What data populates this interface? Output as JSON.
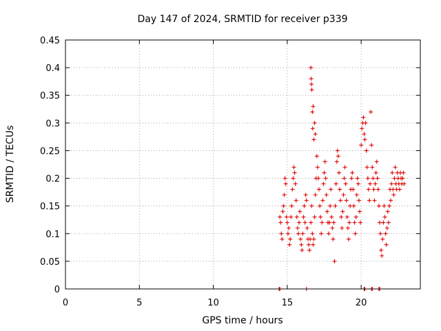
{
  "chart_data": {
    "type": "scatter",
    "title": "Day 147 of 2024, SRMTID for receiver p339",
    "xlabel": "GPS time / hours",
    "ylabel": "SRMTID / TECUs",
    "xlim": [
      0,
      24
    ],
    "ylim": [
      0,
      0.45
    ],
    "x_ticks": [
      0,
      5,
      10,
      15,
      20
    ],
    "y_ticks": [
      0,
      0.05,
      0.1,
      0.15,
      0.2,
      0.25,
      0.3,
      0.35,
      0.4,
      0.45
    ],
    "x_tick_labels": [
      "0",
      "5",
      "10",
      "15",
      "20"
    ],
    "y_tick_labels": [
      "0",
      "0.05",
      "0.1",
      "0.15",
      "0.2",
      "0.25",
      "0.3",
      "0.35",
      "0.4",
      "0.45"
    ],
    "grid": true,
    "marker": "plus",
    "series": [
      {
        "name": "SRMTID",
        "color": "#e00000",
        "points": [
          [
            14.45,
            0.0
          ],
          [
            14.5,
            0.0
          ],
          [
            16.3,
            0.0
          ],
          [
            20.2,
            0.0
          ],
          [
            20.25,
            0.0
          ],
          [
            20.7,
            0.0
          ],
          [
            20.75,
            0.0
          ],
          [
            21.2,
            0.0
          ],
          [
            21.25,
            0.0
          ],
          [
            14.5,
            0.13
          ],
          [
            14.55,
            0.12
          ],
          [
            14.6,
            0.1
          ],
          [
            14.65,
            0.09
          ],
          [
            14.7,
            0.14
          ],
          [
            14.75,
            0.15
          ],
          [
            14.8,
            0.17
          ],
          [
            14.85,
            0.2
          ],
          [
            14.9,
            0.19
          ],
          [
            14.95,
            0.13
          ],
          [
            15.0,
            0.12
          ],
          [
            15.05,
            0.1
          ],
          [
            15.1,
            0.11
          ],
          [
            15.15,
            0.08
          ],
          [
            15.2,
            0.09
          ],
          [
            15.25,
            0.13
          ],
          [
            15.3,
            0.15
          ],
          [
            15.35,
            0.18
          ],
          [
            15.4,
            0.2
          ],
          [
            15.45,
            0.22
          ],
          [
            15.5,
            0.21
          ],
          [
            15.55,
            0.19
          ],
          [
            15.6,
            0.16
          ],
          [
            15.65,
            0.13
          ],
          [
            15.7,
            0.11
          ],
          [
            15.75,
            0.1
          ],
          [
            15.8,
            0.12
          ],
          [
            15.85,
            0.14
          ],
          [
            15.9,
            0.09
          ],
          [
            15.95,
            0.08
          ],
          [
            16.0,
            0.07
          ],
          [
            16.05,
            0.1
          ],
          [
            16.1,
            0.13
          ],
          [
            16.15,
            0.15
          ],
          [
            16.2,
            0.12
          ],
          [
            16.25,
            0.17
          ],
          [
            16.3,
            0.16
          ],
          [
            16.35,
            0.11
          ],
          [
            16.4,
            0.09
          ],
          [
            16.45,
            0.08
          ],
          [
            16.5,
            0.07
          ],
          [
            16.55,
            0.09
          ],
          [
            16.6,
            0.12
          ],
          [
            16.65,
            0.15
          ],
          [
            16.7,
            0.1
          ],
          [
            16.75,
            0.08
          ],
          [
            16.8,
            0.09
          ],
          [
            16.85,
            0.13
          ],
          [
            16.9,
            0.17
          ],
          [
            16.95,
            0.2
          ],
          [
            16.6,
            0.4
          ],
          [
            16.62,
            0.38
          ],
          [
            16.64,
            0.37
          ],
          [
            16.66,
            0.36
          ],
          [
            16.7,
            0.32
          ],
          [
            16.72,
            0.29
          ],
          [
            16.75,
            0.33
          ],
          [
            16.8,
            0.27
          ],
          [
            16.85,
            0.3
          ],
          [
            16.9,
            0.28
          ],
          [
            17.0,
            0.24
          ],
          [
            17.05,
            0.22
          ],
          [
            17.1,
            0.2
          ],
          [
            17.15,
            0.18
          ],
          [
            17.2,
            0.15
          ],
          [
            17.25,
            0.13
          ],
          [
            17.3,
            0.1
          ],
          [
            17.35,
            0.12
          ],
          [
            17.4,
            0.16
          ],
          [
            17.45,
            0.19
          ],
          [
            17.5,
            0.21
          ],
          [
            17.55,
            0.23
          ],
          [
            17.6,
            0.2
          ],
          [
            17.65,
            0.17
          ],
          [
            17.7,
            0.14
          ],
          [
            17.75,
            0.12
          ],
          [
            17.8,
            0.1
          ],
          [
            17.85,
            0.12
          ],
          [
            17.9,
            0.15
          ],
          [
            17.95,
            0.18
          ],
          [
            18.0,
            0.13
          ],
          [
            18.05,
            0.11
          ],
          [
            18.1,
            0.09
          ],
          [
            18.15,
            0.12
          ],
          [
            18.2,
            0.05
          ],
          [
            18.25,
            0.15
          ],
          [
            18.3,
            0.19
          ],
          [
            18.35,
            0.23
          ],
          [
            18.4,
            0.25
          ],
          [
            18.45,
            0.24
          ],
          [
            18.5,
            0.21
          ],
          [
            18.55,
            0.18
          ],
          [
            18.6,
            0.16
          ],
          [
            18.65,
            0.13
          ],
          [
            18.7,
            0.11
          ],
          [
            18.75,
            0.14
          ],
          [
            18.8,
            0.17
          ],
          [
            18.85,
            0.2
          ],
          [
            18.9,
            0.22
          ],
          [
            18.95,
            0.19
          ],
          [
            19.0,
            0.16
          ],
          [
            19.05,
            0.13
          ],
          [
            19.1,
            0.11
          ],
          [
            19.15,
            0.09
          ],
          [
            19.2,
            0.12
          ],
          [
            19.25,
            0.15
          ],
          [
            19.3,
            0.18
          ],
          [
            19.35,
            0.2
          ],
          [
            19.4,
            0.21
          ],
          [
            19.45,
            0.18
          ],
          [
            19.5,
            0.15
          ],
          [
            19.55,
            0.12
          ],
          [
            19.6,
            0.1
          ],
          [
            19.65,
            0.13
          ],
          [
            19.7,
            0.17
          ],
          [
            19.75,
            0.2
          ],
          [
            19.8,
            0.19
          ],
          [
            19.85,
            0.16
          ],
          [
            19.9,
            0.14
          ],
          [
            19.95,
            0.12
          ],
          [
            20.0,
            0.26
          ],
          [
            20.05,
            0.29
          ],
          [
            20.1,
            0.3
          ],
          [
            20.15,
            0.31
          ],
          [
            20.2,
            0.28
          ],
          [
            20.25,
            0.27
          ],
          [
            20.3,
            0.3
          ],
          [
            20.35,
            0.25
          ],
          [
            20.4,
            0.22
          ],
          [
            20.45,
            0.2
          ],
          [
            20.5,
            0.18
          ],
          [
            20.55,
            0.16
          ],
          [
            20.6,
            0.19
          ],
          [
            20.65,
            0.32
          ],
          [
            20.7,
            0.26
          ],
          [
            20.75,
            0.22
          ],
          [
            20.8,
            0.2
          ],
          [
            20.85,
            0.18
          ],
          [
            20.9,
            0.16
          ],
          [
            20.95,
            0.19
          ],
          [
            21.0,
            0.21
          ],
          [
            21.05,
            0.23
          ],
          [
            21.1,
            0.2
          ],
          [
            21.15,
            0.18
          ],
          [
            21.2,
            0.15
          ],
          [
            21.25,
            0.12
          ],
          [
            21.3,
            0.1
          ],
          [
            21.35,
            0.07
          ],
          [
            21.4,
            0.06
          ],
          [
            21.45,
            0.09
          ],
          [
            21.5,
            0.12
          ],
          [
            21.55,
            0.15
          ],
          [
            21.6,
            0.13
          ],
          [
            21.65,
            0.1
          ],
          [
            21.7,
            0.08
          ],
          [
            21.75,
            0.11
          ],
          [
            21.8,
            0.14
          ],
          [
            21.85,
            0.12
          ],
          [
            21.9,
            0.15
          ],
          [
            21.95,
            0.18
          ],
          [
            22.0,
            0.16
          ],
          [
            22.05,
            0.19
          ],
          [
            22.1,
            0.21
          ],
          [
            22.15,
            0.18
          ],
          [
            22.2,
            0.17
          ],
          [
            22.25,
            0.2
          ],
          [
            22.3,
            0.22
          ],
          [
            22.35,
            0.19
          ],
          [
            22.4,
            0.18
          ],
          [
            22.45,
            0.21
          ],
          [
            22.5,
            0.2
          ],
          [
            22.55,
            0.19
          ],
          [
            22.6,
            0.18
          ],
          [
            22.65,
            0.21
          ],
          [
            22.7,
            0.2
          ],
          [
            22.75,
            0.19
          ],
          [
            22.8,
            0.2
          ],
          [
            22.85,
            0.21
          ],
          [
            22.9,
            0.19
          ]
        ]
      }
    ]
  }
}
